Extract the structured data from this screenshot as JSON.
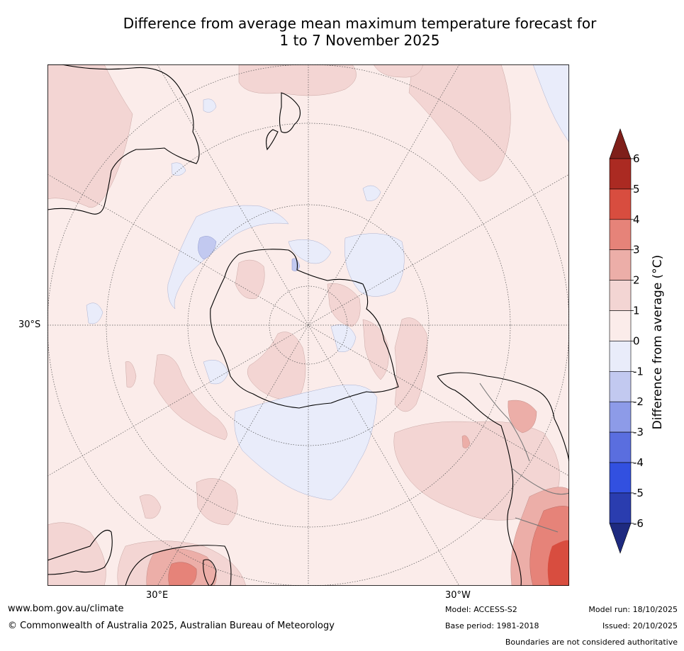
{
  "title": {
    "line1": "Difference from average mean maximum temperature forecast for",
    "line2": "1 to 7 November 2025"
  },
  "map": {
    "lat_labels": [
      "30°S"
    ],
    "lon_labels": [
      "30°E",
      "30°W"
    ]
  },
  "colorbar": {
    "label": "Difference from average (°C)",
    "ticks": [
      "6",
      "5",
      "4",
      "3",
      "2",
      "1",
      "0",
      "-1",
      "-2",
      "-3",
      "-4",
      "-5",
      "-6"
    ],
    "colors": {
      "over": "#7f1f1a",
      "p6": "#ab2a22",
      "p5": "#d84d3f",
      "p4": "#e68379",
      "p3": "#ecaea8",
      "p2": "#f3d5d3",
      "p1": "#fbecea",
      "m1": "#e9ecfa",
      "m2": "#c2c9f0",
      "m3": "#8d9be8",
      "m4": "#5a6edf",
      "m5": "#3250e0",
      "m6": "#2a3daf",
      "under": "#1e2a80"
    }
  },
  "footer": {
    "url": "www.bom.gov.au/climate",
    "copyright": "© Commonwealth of Australia 2025, Australian Bureau of Meteorology",
    "model": "Model: ACCESS-S2",
    "base_period": "Base period: 1981-2018",
    "model_run": "Model run: 18/10/2025",
    "issued": "Issued: 20/10/2025",
    "disclaimer": "Boundaries are not considered authoritative"
  }
}
